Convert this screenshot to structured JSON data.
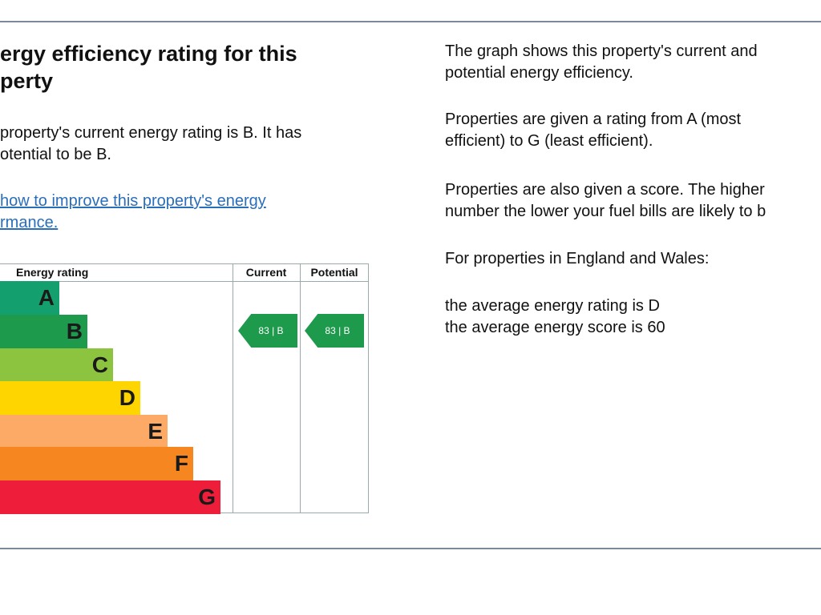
{
  "heading": {
    "lines": [
      "ergy efficiency rating for this",
      "perty"
    ]
  },
  "summary": {
    "lines": [
      "property's current energy rating is B. It has",
      "otential to be B."
    ]
  },
  "link": {
    "lines": [
      "how to improve this property's energy",
      "rmance."
    ]
  },
  "table": {
    "headers": [
      "Energy rating",
      "Current",
      "Potential"
    ],
    "bands": [
      "A",
      "B",
      "C",
      "D",
      "E",
      "F",
      "G"
    ],
    "current": "83 | B",
    "potential": "83 | B"
  },
  "info": {
    "paragraphs": [
      [
        "The graph shows this property's current and",
        "potential energy efficiency."
      ],
      [
        "Properties are given a rating from A (most",
        "efficient) to G (least efficient)."
      ],
      [
        "Properties are also given a score. The higher",
        "number the lower your fuel bills are likely to b"
      ],
      [
        "For properties in England and Wales:"
      ],
      [
        "the average energy rating is D",
        "the average energy score is 60"
      ]
    ]
  }
}
